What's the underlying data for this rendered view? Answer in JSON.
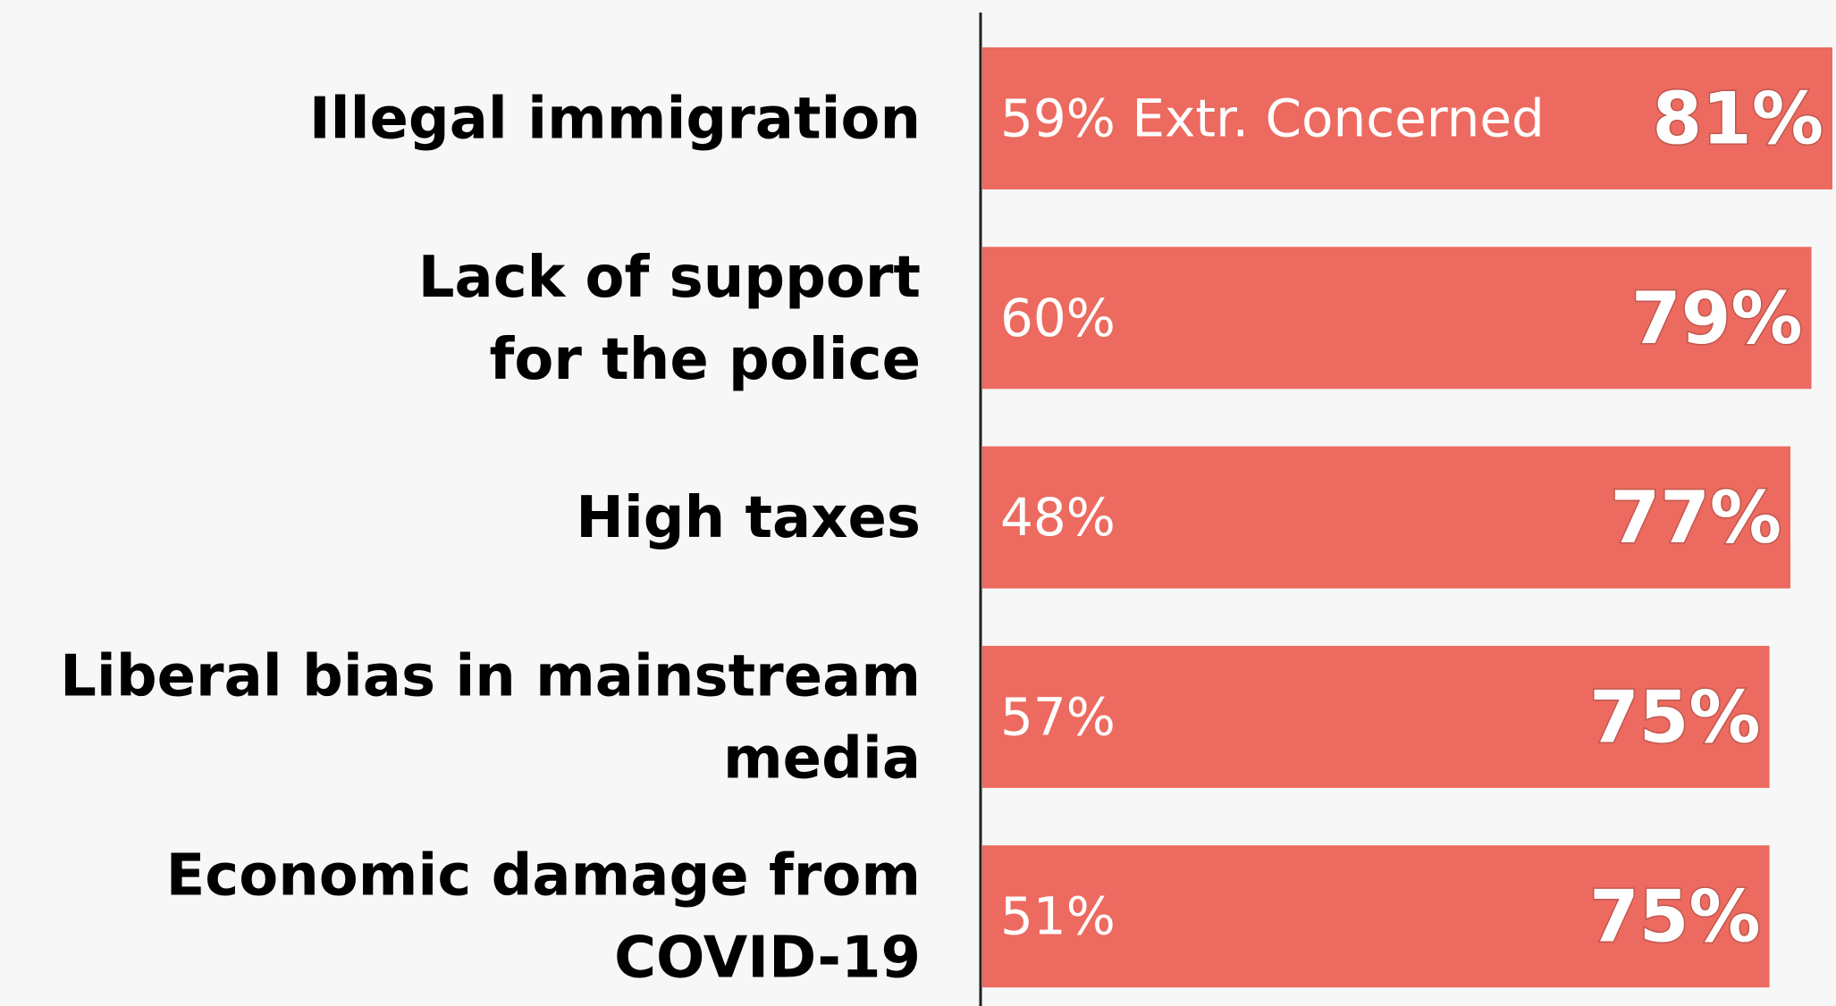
{
  "chart_data": {
    "type": "bar",
    "orientation": "horizontal",
    "categories": [
      [
        "Illegal immigration"
      ],
      [
        "Lack of support",
        "for the police"
      ],
      [
        "High taxes"
      ],
      [
        "Liberal bias in mainstream",
        "media"
      ],
      [
        "Economic damage from",
        "COVID-19"
      ]
    ],
    "series": [
      {
        "name": "",
        "values": [
          81,
          79,
          77,
          75,
          75
        ]
      }
    ],
    "inner_values": [
      59,
      60,
      48,
      57,
      51
    ],
    "inner_labels": [
      "59% Extr. Concerned",
      "60%",
      "48%",
      "57%",
      "51%"
    ],
    "total_labels": [
      "81%",
      "79%",
      "77%",
      "75%",
      "75%"
    ],
    "xlim": [
      0,
      81
    ],
    "bar_color": "#ec6a5f",
    "axis_color": "#222222",
    "grid": false,
    "legend": "none"
  }
}
